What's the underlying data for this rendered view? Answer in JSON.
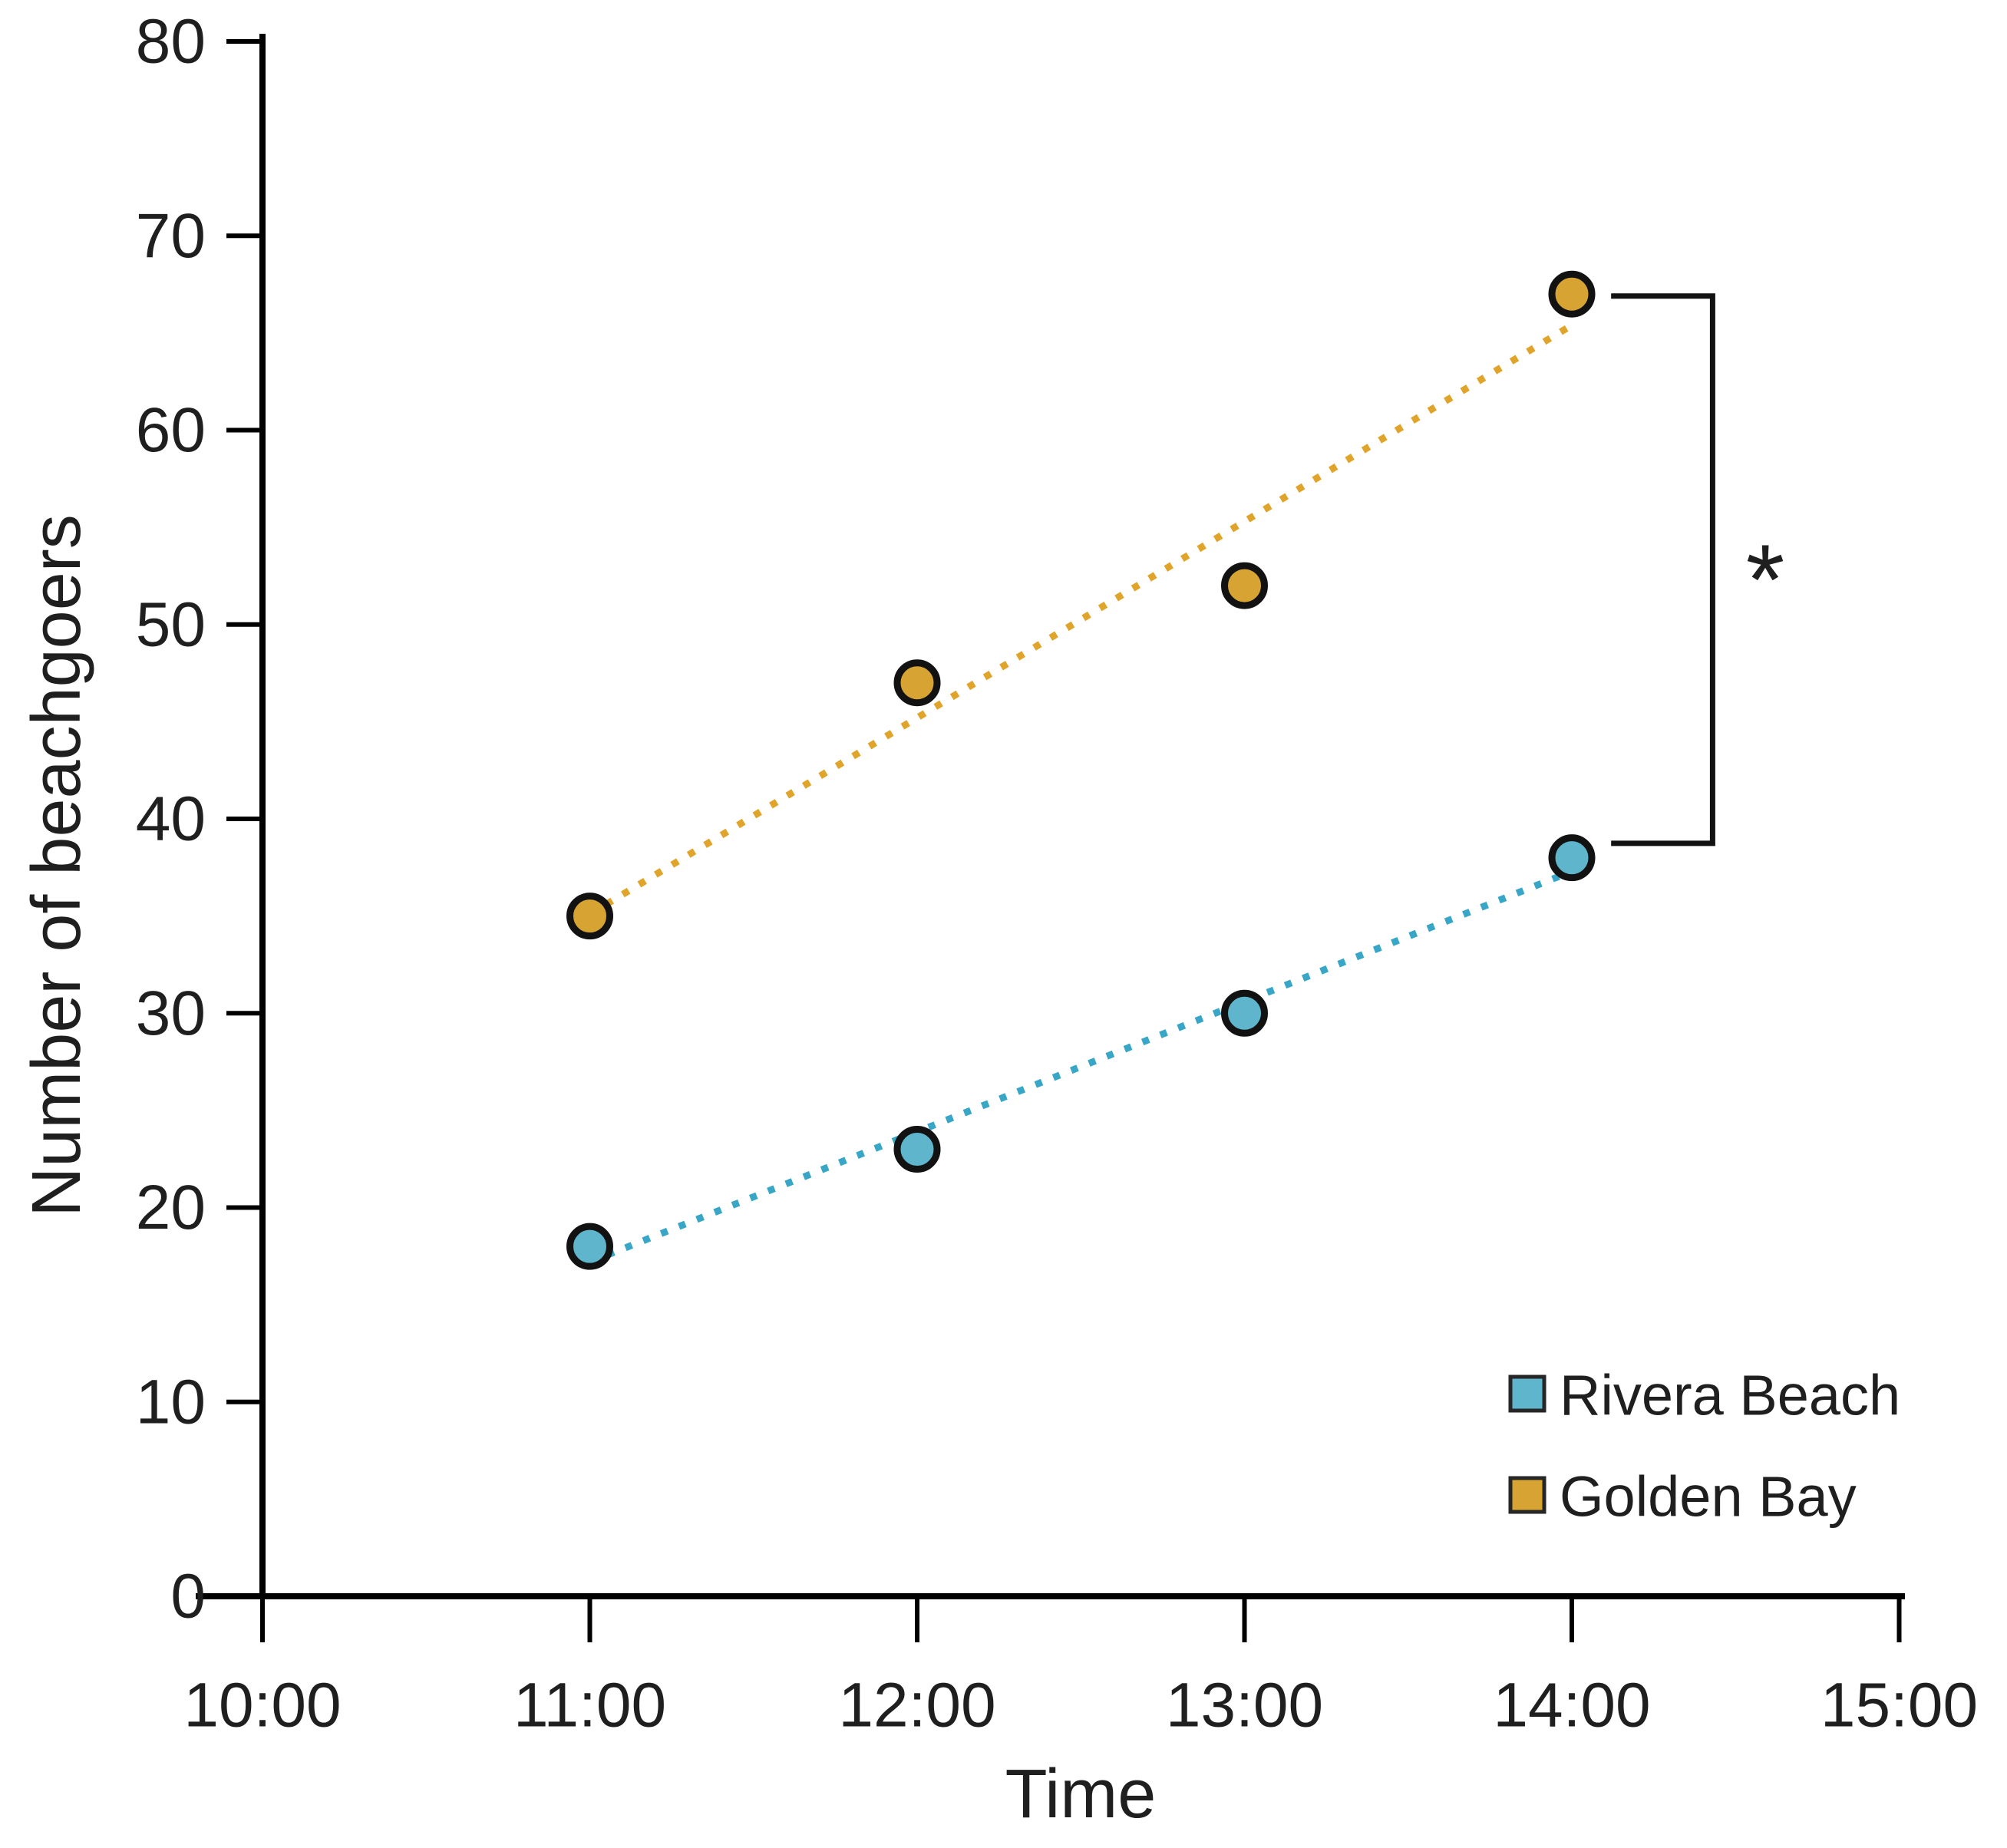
{
  "figure": {
    "background": "#ffffff",
    "axis_color": "#000000",
    "text_color": "#1f1f1f"
  },
  "chart_data": {
    "type": "scatter",
    "title": "",
    "xlabel": "Time",
    "ylabel": "Number of beachgoers",
    "xlim": [
      10,
      15
    ],
    "ylim": [
      0,
      80
    ],
    "grid": false,
    "x_ticks": [
      "10:00",
      "11:00",
      "12:00",
      "13:00",
      "14:00",
      "15:00"
    ],
    "x_tick_hours": [
      10,
      11,
      12,
      13,
      14,
      15
    ],
    "y_ticks": [
      0,
      10,
      20,
      30,
      40,
      50,
      60,
      70,
      80
    ],
    "legend_position": "bottom-right",
    "series": [
      {
        "name": "Rivera Beach",
        "slug": "rivera-beach",
        "marker": "circle",
        "color": "#5FB6CC",
        "marker_outline": "#121212",
        "line_color": "#38A6C6",
        "line_style": "dotted",
        "x_labels": [
          "11:00",
          "12:00",
          "13:00",
          "14:00"
        ],
        "x_hours": [
          11,
          12,
          13,
          14
        ],
        "values": [
          18,
          23,
          30,
          38
        ],
        "trendline": {
          "x_hours": [
            11,
            14
          ],
          "values": [
            17.2,
            37.3
          ]
        }
      },
      {
        "name": "Golden Bay",
        "slug": "golden-bay",
        "marker": "circle",
        "color": "#D7A433",
        "marker_outline": "#121212",
        "line_color": "#E0A42A",
        "line_style": "dotted",
        "x_labels": [
          "11:00",
          "12:00",
          "13:00",
          "14:00"
        ],
        "x_hours": [
          11,
          12,
          13,
          14
        ],
        "values": [
          35,
          47,
          52,
          67
        ],
        "trendline": {
          "x_hours": [
            11,
            14
          ],
          "values": [
            35.1,
            65.4
          ]
        }
      }
    ],
    "annotation": {
      "symbol": "*",
      "meaning": "significance bracket between Golden Bay and Rivera Beach at 14:00",
      "bracket_inner_hour": 14.12,
      "bracket_outer_hour": 14.43,
      "bracket_top_value": 66.9,
      "bracket_bottom_value": 38.74,
      "color": "#121212"
    }
  }
}
